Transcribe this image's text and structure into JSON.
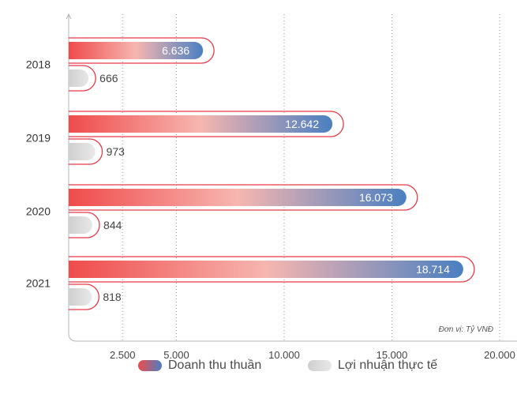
{
  "chart_data": {
    "type": "bar",
    "orientation": "horizontal",
    "categories": [
      "2018",
      "2019",
      "2020",
      "2021"
    ],
    "series": [
      {
        "name": "Doanh thu thuần",
        "values": [
          6636,
          12642,
          16073,
          18714
        ],
        "labels": [
          "6.636",
          "12.642",
          "16.073",
          "18.714"
        ],
        "color_start": "#ef4b4b",
        "color_mid": "#f7b6b0",
        "color_end": "#4a7fc1"
      },
      {
        "name": "Lợi nhuận thực tế",
        "values": [
          666,
          973,
          844,
          818
        ],
        "labels": [
          "666",
          "973",
          "844",
          "818"
        ],
        "color_start": "#cfcfcf",
        "color_end": "#e8e8e8"
      }
    ],
    "x_ticks": [
      {
        "value": 2500,
        "label": "2.500"
      },
      {
        "value": 5000,
        "label": "5.000"
      },
      {
        "value": 10000,
        "label": "10.000"
      },
      {
        "value": 15000,
        "label": "15.000"
      },
      {
        "value": 20000,
        "label": "20.000"
      }
    ],
    "xlim": [
      0,
      20000
    ],
    "unit_note": "Đơn vị: Tỷ VNĐ",
    "grid": true,
    "legend_position": "bottom",
    "outline_color": "#e63946"
  }
}
